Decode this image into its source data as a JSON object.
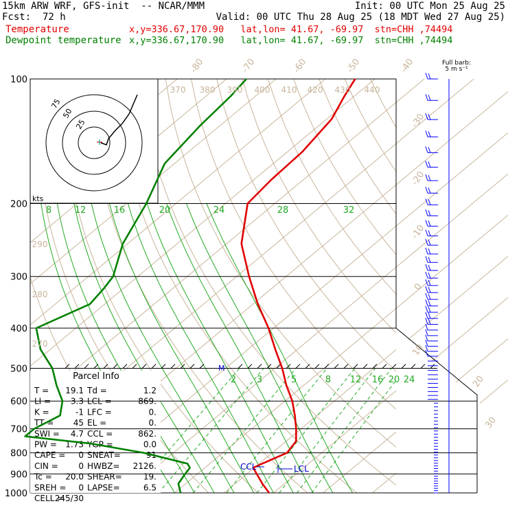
{
  "header": {
    "model": "15km ARW WRF, GFS-init  -- NCAR/MMM",
    "init": "Init: 00 UTC Mon 25 Aug 25",
    "fcst_label": "Fcst:",
    "fcst_value": "72 h",
    "valid": "Valid: 00 UTC Thu 28 Aug 25 (18 MDT Wed 27 Aug 25)",
    "temp_label": "Temperature",
    "temp_info": "x,y=336.67,170.90   lat,lon= 41.67, -69.97  stn=CHH ,74494",
    "dew_label": "Dewpoint temperature",
    "dew_info": "x,y=336.67,170.90   lat,lon= 41.67, -69.97  stn=CHH ,74494"
  },
  "barb_legend": {
    "line1": "Full barb:",
    "line2": "5 m s⁻¹"
  },
  "hodograph": {
    "units": "kts",
    "ring_labels": [
      "75",
      "50",
      "25"
    ]
  },
  "parcel_info": {
    "title": "Parcel Info",
    "rows": [
      [
        "T  =",
        "19.1",
        "Td =",
        "1.2"
      ],
      [
        "LI =",
        "3.3",
        "LCL =",
        "869."
      ],
      [
        "K  =",
        "-1",
        "LFC =",
        "0."
      ],
      [
        "TT =",
        "45",
        "EL  =",
        "0."
      ],
      [
        "SWI =",
        "4.7",
        "CCL =",
        "862."
      ],
      [
        "PW =",
        "1.73",
        "YGP =",
        "0.0"
      ],
      [
        "CAPE =",
        "0",
        "SNEAT=",
        "91"
      ],
      [
        "CIN  =",
        "0",
        "HWBZ=",
        "2126."
      ],
      [
        "Tc =",
        "20.0",
        "SHEAR=",
        "19."
      ],
      [
        "SREH =",
        "0",
        "LAPSE=",
        "6.5"
      ],
      [
        "CELL =",
        "245/30",
        "",
        ""
      ]
    ]
  },
  "chart_data": {
    "type": "line",
    "title": "",
    "pressure_levels": [
      "100",
      "200",
      "300",
      "400",
      "500",
      "600",
      "700",
      "800",
      "900",
      "1000"
    ],
    "isotherm_labels": [
      "-80",
      "-70",
      "-60",
      "-50",
      "-40",
      "-30",
      "-20",
      "-10",
      "0",
      "10",
      "20",
      "30",
      "40"
    ],
    "theta_labels": [
      "370",
      "380",
      "390",
      "400",
      "410",
      "420",
      "430",
      "440",
      "290",
      "280",
      "270"
    ],
    "mixing_ratio_labels_top": [
      "8",
      "12",
      "16",
      "20",
      "24",
      "28",
      "32"
    ],
    "mixing_ratio_labels_bottom": [
      "2",
      "3",
      "5",
      "8",
      "12",
      "16",
      "20",
      "24"
    ],
    "markers": {
      "ccl": "CCL",
      "lcl": "LCL",
      "m": "M"
    },
    "series": [
      {
        "name": "Temperature",
        "color": "#e00000",
        "points": [
          [
            1000,
            19.1
          ],
          [
            950,
            15.5
          ],
          [
            900,
            12.0
          ],
          [
            870,
            9.8
          ],
          [
            850,
            10.6
          ],
          [
            800,
            13.0
          ],
          [
            750,
            12.0
          ],
          [
            700,
            9.0
          ],
          [
            650,
            5.5
          ],
          [
            600,
            1.5
          ],
          [
            550,
            -3.5
          ],
          [
            500,
            -8.5
          ],
          [
            450,
            -14.5
          ],
          [
            400,
            -21.0
          ],
          [
            350,
            -29.0
          ],
          [
            300,
            -37.5
          ],
          [
            250,
            -47.0
          ],
          [
            200,
            -55.5
          ],
          [
            175,
            -56.5
          ],
          [
            150,
            -57.0
          ],
          [
            125,
            -59.0
          ],
          [
            110,
            -62.0
          ],
          [
            100,
            -64.0
          ]
        ]
      },
      {
        "name": "Dewpoint temperature",
        "color": "#008000",
        "points": [
          [
            1000,
            1.2
          ],
          [
            950,
            -1.5
          ],
          [
            900,
            -2.5
          ],
          [
            870,
            -3.0
          ],
          [
            850,
            -4.5
          ],
          [
            800,
            -16.0
          ],
          [
            760,
            -29.0
          ],
          [
            730,
            -44.0
          ],
          [
            700,
            -44.0
          ],
          [
            650,
            -42.0
          ],
          [
            600,
            -45.0
          ],
          [
            550,
            -50.0
          ],
          [
            500,
            -55.0
          ],
          [
            450,
            -62.0
          ],
          [
            400,
            -68.0
          ],
          [
            350,
            -63.0
          ],
          [
            320,
            -64.0
          ],
          [
            300,
            -65.0
          ],
          [
            250,
            -71.0
          ],
          [
            200,
            -76.0
          ],
          [
            160,
            -82.0
          ],
          [
            130,
            -84.0
          ],
          [
            110,
            -85.0
          ],
          [
            100,
            -86.0
          ]
        ]
      }
    ]
  },
  "wind_barbs": {
    "color": "#0000ff",
    "count": 72
  }
}
